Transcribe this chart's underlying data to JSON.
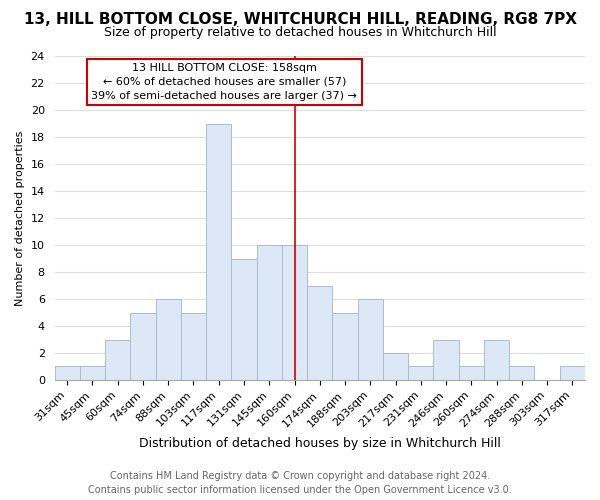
{
  "title": "13, HILL BOTTOM CLOSE, WHITCHURCH HILL, READING, RG8 7PX",
  "subtitle": "Size of property relative to detached houses in Whitchurch Hill",
  "xlabel": "Distribution of detached houses by size in Whitchurch Hill",
  "ylabel": "Number of detached properties",
  "bar_color": "#dce8f5",
  "bar_edge_color": "#aabccc",
  "categories": [
    "31sqm",
    "45sqm",
    "60sqm",
    "74sqm",
    "88sqm",
    "103sqm",
    "117sqm",
    "131sqm",
    "145sqm",
    "160sqm",
    "174sqm",
    "188sqm",
    "203sqm",
    "217sqm",
    "231sqm",
    "246sqm",
    "260sqm",
    "274sqm",
    "288sqm",
    "303sqm",
    "317sqm"
  ],
  "values": [
    1,
    1,
    3,
    5,
    6,
    5,
    19,
    9,
    10,
    10,
    7,
    5,
    6,
    2,
    1,
    3,
    1,
    3,
    1,
    0,
    1
  ],
  "ylim": [
    0,
    24
  ],
  "yticks": [
    0,
    2,
    4,
    6,
    8,
    10,
    12,
    14,
    16,
    18,
    20,
    22,
    24
  ],
  "vline_x_index": 9,
  "annotation_line1": "13 HILL BOTTOM CLOSE: 158sqm",
  "annotation_line2": "← 60% of detached houses are smaller (57)",
  "annotation_line3": "39% of semi-detached houses are larger (37) →",
  "annotation_box_color": "#ffffff",
  "annotation_box_edge": "#cc0000",
  "vline_color": "#cc0000",
  "footer_line1": "Contains HM Land Registry data © Crown copyright and database right 2024.",
  "footer_line2": "Contains public sector information licensed under the Open Government Licence v3.0.",
  "background_color": "#ffffff",
  "grid_color": "#dddddd",
  "title_fontsize": 11,
  "subtitle_fontsize": 9,
  "xlabel_fontsize": 9,
  "ylabel_fontsize": 8,
  "tick_fontsize": 8,
  "annotation_fontsize": 8,
  "footer_fontsize": 7
}
